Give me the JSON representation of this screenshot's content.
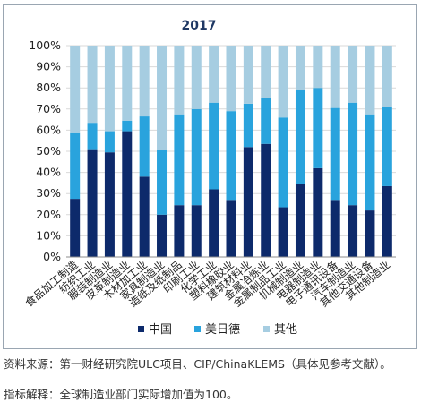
{
  "chart_data": {
    "type": "bar",
    "stacked": true,
    "title": "2017",
    "categories": [
      "食品加工制造",
      "纺织工业",
      "服装制造业",
      "皮革制造业",
      "木材加工业",
      "家具制造业",
      "造纸及纸制品",
      "印刷工业",
      "化学工业",
      "塑料橡胶业",
      "建筑材料业",
      "金属冶炼业",
      "金属制品工业",
      "机械制造业",
      "电器制造业",
      "电子通讯设备",
      "汽车制造业",
      "其他交通设备",
      "其他制造业"
    ],
    "series": [
      {
        "name": "中国",
        "color": "#0d2a6b",
        "values": [
          27.5,
          51,
          49.5,
          59.5,
          38,
          20,
          24.5,
          24.5,
          32,
          27,
          52,
          53.5,
          23.5,
          34.5,
          42,
          27,
          24.5,
          22,
          33.5
        ]
      },
      {
        "name": "美日德",
        "color": "#29a3dd",
        "values": [
          31.5,
          12.5,
          10,
          5,
          28.5,
          30.5,
          43,
          45.5,
          41,
          42,
          20.5,
          21.5,
          42.5,
          44.5,
          38,
          43.5,
          48.5,
          45.5,
          37.5
        ]
      },
      {
        "name": "其他",
        "color": "#a6cde1",
        "values": [
          41,
          36.5,
          40.5,
          35.5,
          33.5,
          49.5,
          32.5,
          30,
          27,
          31,
          27.5,
          25,
          34,
          21,
          20,
          29.5,
          27,
          32.5,
          29
        ]
      }
    ],
    "ylim": [
      0,
      100
    ],
    "yticks": [
      "0%",
      "10%",
      "20%",
      "30%",
      "40%",
      "50%",
      "60%",
      "70%",
      "80%",
      "90%",
      "100%"
    ],
    "legend_position": "bottom"
  },
  "notes": {
    "source": "资料来源：第一财经研究院ULC项目、CIP/ChinaKLEMS（具体见参考文献）。",
    "indicator": "指标解释：全球制造业部门实际增加值为100。"
  }
}
